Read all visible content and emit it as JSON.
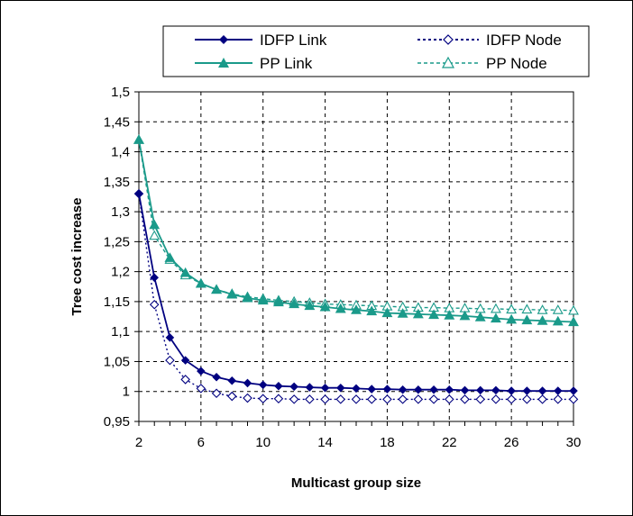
{
  "chart_data": {
    "type": "line",
    "xlabel": "Multicast group size",
    "ylabel": "Tree cost increase",
    "xlim": [
      2,
      30
    ],
    "ylim": [
      0.95,
      1.5
    ],
    "x_ticks": [
      "2",
      "6",
      "10",
      "14",
      "18",
      "22",
      "26",
      "30"
    ],
    "y_ticks": [
      "0,95",
      "1",
      "1,05",
      "1,1",
      "1,15",
      "1,2",
      "1,25",
      "1,3",
      "1,35",
      "1,4",
      "1,45",
      "1,5"
    ],
    "grid": "horizontal and vertical dashed",
    "legend_position": "top",
    "x": [
      2,
      3,
      4,
      5,
      6,
      7,
      8,
      9,
      10,
      11,
      12,
      13,
      14,
      15,
      16,
      17,
      18,
      19,
      20,
      21,
      22,
      23,
      24,
      25,
      26,
      27,
      28,
      29,
      30
    ],
    "series": [
      {
        "name": "IDFP Link",
        "color": "#000080",
        "line": "solid",
        "marker": "filled-diamond",
        "values": [
          1.33,
          1.19,
          1.09,
          1.052,
          1.034,
          1.024,
          1.018,
          1.014,
          1.011,
          1.009,
          1.008,
          1.007,
          1.006,
          1.006,
          1.005,
          1.004,
          1.004,
          1.003,
          1.003,
          1.003,
          1.003,
          1.002,
          1.002,
          1.002,
          1.001,
          1.001,
          1.001,
          1.001,
          1.001
        ]
      },
      {
        "name": "IDFP Node",
        "color": "#000080",
        "line": "dotted",
        "marker": "open-diamond",
        "values": [
          1.33,
          1.145,
          1.052,
          1.02,
          1.005,
          0.997,
          0.992,
          0.989,
          0.988,
          0.988,
          0.987,
          0.987,
          0.987,
          0.987,
          0.987,
          0.987,
          0.987,
          0.987,
          0.987,
          0.987,
          0.987,
          0.987,
          0.987,
          0.987,
          0.987,
          0.987,
          0.987,
          0.987,
          0.987
        ]
      },
      {
        "name": "PP Link",
        "color": "#1a9a8a",
        "line": "solid",
        "marker": "filled-triangle",
        "values": [
          1.42,
          1.278,
          1.223,
          1.198,
          1.18,
          1.17,
          1.162,
          1.156,
          1.152,
          1.149,
          1.146,
          1.143,
          1.141,
          1.138,
          1.136,
          1.134,
          1.131,
          1.13,
          1.129,
          1.128,
          1.127,
          1.126,
          1.124,
          1.122,
          1.12,
          1.119,
          1.118,
          1.117,
          1.116
        ]
      },
      {
        "name": "PP Node",
        "color": "#1a9a8a",
        "line": "dashed",
        "marker": "open-triangle",
        "values": [
          1.42,
          1.26,
          1.22,
          1.194,
          1.18,
          1.17,
          1.163,
          1.158,
          1.155,
          1.152,
          1.15,
          1.148,
          1.146,
          1.145,
          1.144,
          1.143,
          1.142,
          1.141,
          1.14,
          1.14,
          1.139,
          1.139,
          1.138,
          1.138,
          1.137,
          1.137,
          1.136,
          1.136,
          1.135
        ]
      }
    ]
  }
}
